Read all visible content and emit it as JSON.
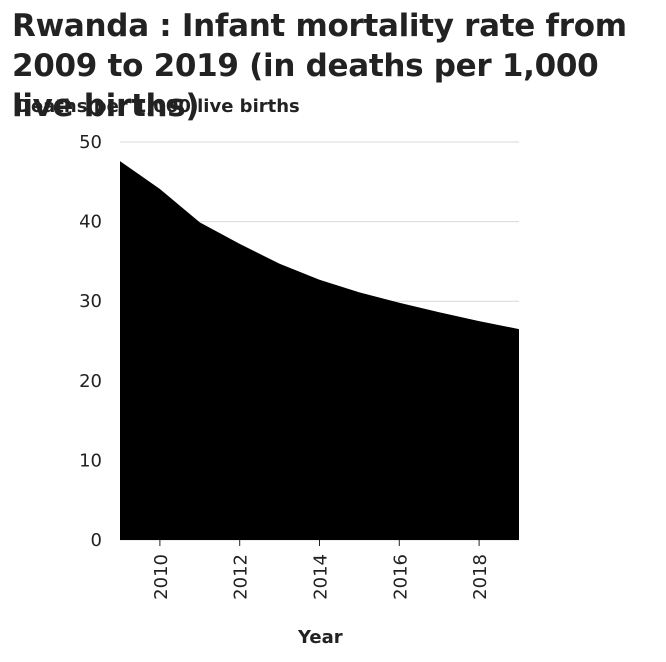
{
  "chart_data": {
    "type": "area",
    "title": "Rwanda : Infant mortality rate from 2009 to 2019 (in deaths per 1,000 live births)",
    "ylabel": "Deaths per 1,000 live births",
    "xlabel": "Year",
    "x": [
      2009,
      2010,
      2011,
      2012,
      2013,
      2014,
      2015,
      2016,
      2017,
      2018,
      2019
    ],
    "values": [
      47.6,
      44.1,
      39.9,
      37.2,
      34.7,
      32.7,
      31.1,
      29.8,
      28.6,
      27.5,
      26.5
    ],
    "xlim": [
      2009,
      2019
    ],
    "ylim": [
      0,
      50
    ],
    "xticks": [
      "2010",
      "2012",
      "2014",
      "2016",
      "2018"
    ],
    "yticks": [
      "0",
      "10",
      "20",
      "30",
      "40",
      "50"
    ],
    "grid": true,
    "fill_color": "#000000",
    "grid_color": "#d9d9d9"
  }
}
